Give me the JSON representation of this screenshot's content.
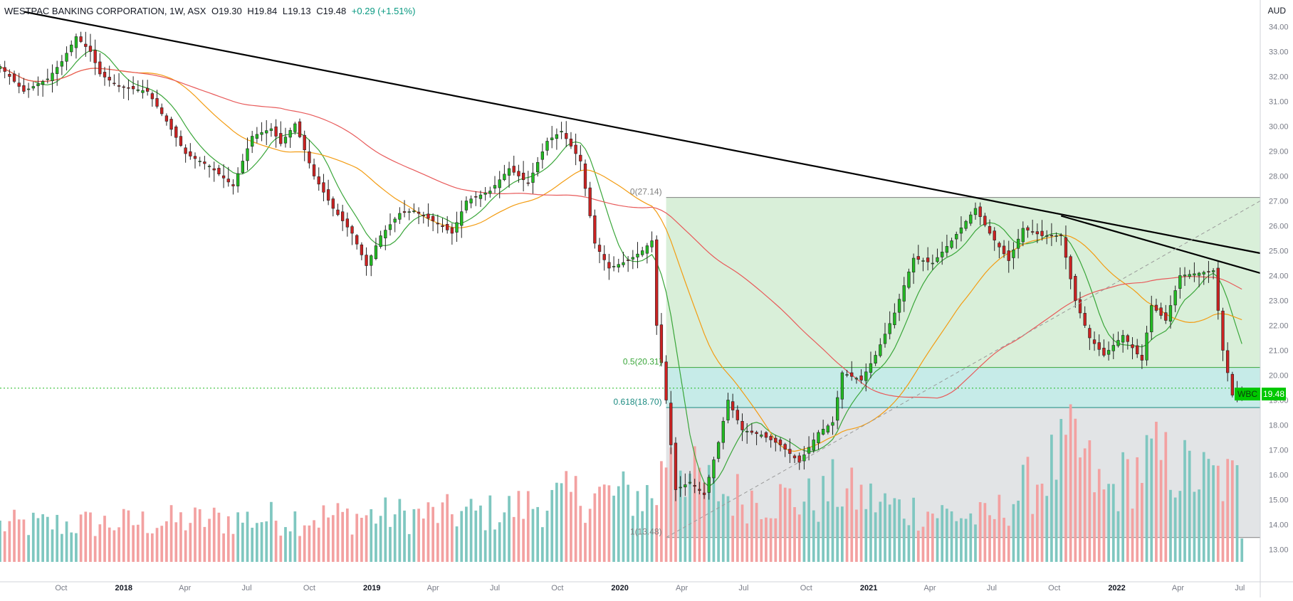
{
  "header": {
    "title": "WESTPAC BANKING CORPORATION, 1W, ASX",
    "open": "O19.30",
    "high": "H19.84",
    "low": "L19.13",
    "close": "C19.48",
    "change": "+0.29 (+1.51%)"
  },
  "colors": {
    "up": "#22bb22",
    "down": "#cc2222",
    "vol_up": "#7fc7c0",
    "vol_down": "#f3a1a1",
    "ma_short": "#3aa63a",
    "ma_mid": "#f39c12",
    "ma_long": "#e85a5a",
    "trendline": "#000000",
    "fib_upper_zone": "#c9e8c9",
    "fib_golden_zone": "#b8e6e2",
    "fib_lower_zone": "#d6d8dc"
  },
  "chart_data": {
    "type": "candlestick",
    "symbol": "WBC",
    "interval": "1W",
    "unit": "AUD",
    "last_price": "19.48",
    "ylim": [
      12.5,
      34.5
    ],
    "y_ticks": [
      "34.00",
      "33.00",
      "32.00",
      "31.00",
      "30.00",
      "29.00",
      "28.00",
      "27.00",
      "26.00",
      "25.00",
      "24.00",
      "23.00",
      "22.00",
      "21.00",
      "20.00",
      "19.00",
      "18.00",
      "17.00",
      "16.00",
      "15.00",
      "14.00",
      "13.00"
    ],
    "x_ticks": [
      {
        "label": "Oct",
        "date": "2017-10-01"
      },
      {
        "label": "2018",
        "date": "2018-01-01"
      },
      {
        "label": "Apr",
        "date": "2018-04-01"
      },
      {
        "label": "Jul",
        "date": "2018-07-01"
      },
      {
        "label": "Oct",
        "date": "2018-10-01"
      },
      {
        "label": "2019",
        "date": "2019-01-01"
      },
      {
        "label": "Apr",
        "date": "2019-04-01"
      },
      {
        "label": "Jul",
        "date": "2019-07-01"
      },
      {
        "label": "Oct",
        "date": "2019-10-01"
      },
      {
        "label": "2020",
        "date": "2020-01-01"
      },
      {
        "label": "Apr",
        "date": "2020-04-01"
      },
      {
        "label": "Jul",
        "date": "2020-07-01"
      },
      {
        "label": "Oct",
        "date": "2020-10-01"
      },
      {
        "label": "2021",
        "date": "2021-01-01"
      },
      {
        "label": "Apr",
        "date": "2021-04-01"
      },
      {
        "label": "Jul",
        "date": "2021-07-01"
      },
      {
        "label": "Oct",
        "date": "2021-10-01"
      },
      {
        "label": "2022",
        "date": "2022-01-01"
      },
      {
        "label": "Apr",
        "date": "2022-04-01"
      },
      {
        "label": "Jul",
        "date": "2022-07-01"
      }
    ],
    "date_range": [
      "2017-07-03",
      "2022-07-31"
    ],
    "candle_path": [
      [
        "2017-07-03",
        32.4
      ],
      [
        "2017-08-07",
        31.4
      ],
      [
        "2017-09-11",
        31.9
      ],
      [
        "2017-10-02",
        32.6
      ],
      [
        "2017-10-23",
        33.6
      ],
      [
        "2017-11-13",
        33.0
      ],
      [
        "2017-11-27",
        32.1
      ],
      [
        "2017-12-25",
        31.6
      ],
      [
        "2018-02-05",
        31.4
      ],
      [
        "2018-03-05",
        30.2
      ],
      [
        "2018-04-02",
        28.9
      ],
      [
        "2018-05-07",
        28.4
      ],
      [
        "2018-06-11",
        27.6
      ],
      [
        "2018-07-09",
        29.6
      ],
      [
        "2018-08-06",
        29.9
      ],
      [
        "2018-08-20",
        29.3
      ],
      [
        "2018-09-10",
        30.1
      ],
      [
        "2018-10-08",
        28.0
      ],
      [
        "2018-11-05",
        26.7
      ],
      [
        "2018-12-03",
        25.7
      ],
      [
        "2018-12-24",
        24.4
      ],
      [
        "2019-01-14",
        25.6
      ],
      [
        "2019-02-11",
        26.5
      ],
      [
        "2019-03-04",
        26.6
      ],
      [
        "2019-04-08",
        26.1
      ],
      [
        "2019-04-29",
        25.7
      ],
      [
        "2019-05-20",
        27.0
      ],
      [
        "2019-06-24",
        27.4
      ],
      [
        "2019-07-22",
        28.3
      ],
      [
        "2019-08-19",
        27.7
      ],
      [
        "2019-09-16",
        29.4
      ],
      [
        "2019-10-07",
        29.8
      ],
      [
        "2019-11-04",
        28.6
      ],
      [
        "2019-11-25",
        25.3
      ],
      [
        "2019-12-16",
        24.3
      ],
      [
        "2020-01-13",
        24.6
      ],
      [
        "2020-02-03",
        25.0
      ],
      [
        "2020-02-17",
        25.4
      ],
      [
        "2020-02-24",
        22.0
      ],
      [
        "2020-03-09",
        19.0
      ],
      [
        "2020-03-23",
        15.4
      ],
      [
        "2020-04-13",
        15.7
      ],
      [
        "2020-05-04",
        15.2
      ],
      [
        "2020-05-25",
        17.3
      ],
      [
        "2020-06-08",
        19.0
      ],
      [
        "2020-06-29",
        17.8
      ],
      [
        "2020-07-27",
        17.6
      ],
      [
        "2020-08-24",
        17.2
      ],
      [
        "2020-09-21",
        16.5
      ],
      [
        "2020-10-19",
        17.7
      ],
      [
        "2020-11-09",
        18.1
      ],
      [
        "2020-11-23",
        20.1
      ],
      [
        "2020-12-21",
        19.8
      ],
      [
        "2021-01-11",
        20.8
      ],
      [
        "2021-02-08",
        22.5
      ],
      [
        "2021-03-08",
        24.7
      ],
      [
        "2021-04-05",
        24.5
      ],
      [
        "2021-05-03",
        25.4
      ],
      [
        "2021-06-07",
        26.7
      ],
      [
        "2021-06-28",
        25.7
      ],
      [
        "2021-07-26",
        24.6
      ],
      [
        "2021-08-16",
        25.9
      ],
      [
        "2021-09-13",
        25.6
      ],
      [
        "2021-10-11",
        25.6
      ],
      [
        "2021-11-01",
        23.0
      ],
      [
        "2021-11-22",
        21.5
      ],
      [
        "2021-12-13",
        20.8
      ],
      [
        "2022-01-10",
        21.6
      ],
      [
        "2022-02-07",
        20.6
      ],
      [
        "2022-02-21",
        22.8
      ],
      [
        "2022-03-14",
        22.2
      ],
      [
        "2022-04-04",
        24.0
      ],
      [
        "2022-05-02",
        24.1
      ],
      [
        "2022-05-23",
        24.2
      ],
      [
        "2022-06-06",
        21.0
      ],
      [
        "2022-06-20",
        19.2
      ],
      [
        "2022-07-04",
        19.48
      ]
    ],
    "volume_path": [
      [
        "2017-07-03",
        0.3
      ],
      [
        "2017-12-25",
        0.32
      ],
      [
        "2018-06-11",
        0.35
      ],
      [
        "2018-12-24",
        0.38
      ],
      [
        "2019-06-24",
        0.4
      ],
      [
        "2019-11-04",
        0.55
      ],
      [
        "2020-02-24",
        0.55
      ],
      [
        "2020-03-16",
        1.05
      ],
      [
        "2020-04-13",
        0.7
      ],
      [
        "2020-06-08",
        0.55
      ],
      [
        "2020-10-19",
        0.5
      ],
      [
        "2020-11-09",
        0.6
      ],
      [
        "2021-02-08",
        0.45
      ],
      [
        "2021-06-28",
        0.35
      ],
      [
        "2021-11-01",
        0.95
      ],
      [
        "2021-12-13",
        0.55
      ],
      [
        "2022-02-21",
        0.85
      ],
      [
        "2022-05-02",
        0.7
      ],
      [
        "2022-06-27",
        0.65
      ],
      [
        "2022-07-04",
        0.25
      ]
    ],
    "fibonacci": {
      "levels": [
        {
          "label": "0(27.14)",
          "price": 27.14,
          "color": "#808080"
        },
        {
          "label": "0.5(20.31)",
          "price": 20.31,
          "color": "#3aa63a"
        },
        {
          "label": "0.618(18.70)",
          "price": 18.7,
          "color": "#1a8a80"
        },
        {
          "label": "1(13.48)",
          "price": 13.48,
          "color": "#808080"
        }
      ],
      "start_date": "2020-03-09",
      "end_date": "2022-07-31"
    },
    "trendlines": [
      {
        "from": [
          "2017-08-07",
          34.6
        ],
        "to": [
          "2022-07-31",
          24.9
        ],
        "style": "solid",
        "color": "#000000"
      },
      {
        "from": [
          "2021-10-11",
          26.4
        ],
        "to": [
          "2022-07-31",
          24.1
        ],
        "style": "solid",
        "color": "#000000"
      },
      {
        "from": [
          "2020-03-09",
          13.48
        ],
        "to": [
          "2022-07-31",
          27.0
        ],
        "style": "dashed",
        "color": "#9a9a9a"
      }
    ],
    "last_price_line": 19.48,
    "badge_symbol": "WBC"
  }
}
